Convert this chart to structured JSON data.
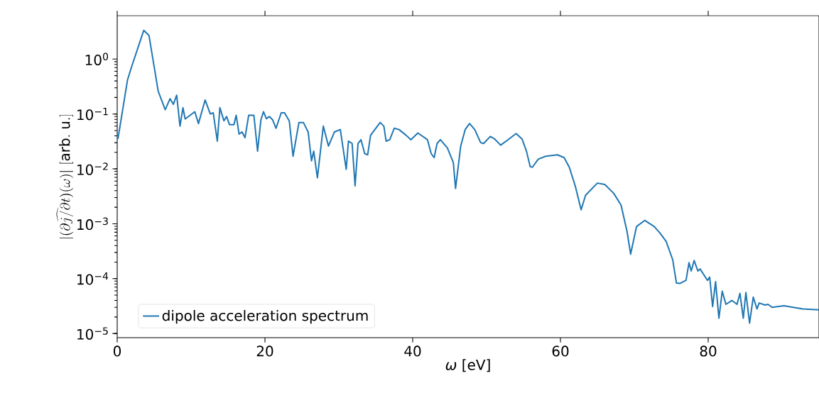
{
  "chart_data": {
    "type": "line",
    "xlabel": "*ω* [eV]",
    "ylabel": "|\\widehat{(\\partial j/\\partial t)}(\\omega)|\\ [\\mathrm{arb.\\ u.}]",
    "log": "y",
    "legend": "bottom left",
    "xlim": [
      0,
      95
    ],
    "ylim": [
      8.4e-06,
      6.2
    ],
    "xticks": [
      0,
      20,
      40,
      60,
      80
    ],
    "yticks": [
      {
        "value": 1e-05,
        "label": "10$^{−5}$"
      },
      {
        "value": 0.0001,
        "label": "10$^{−4}$"
      },
      {
        "value": 0.001,
        "label": "10$^{−3}$"
      },
      {
        "value": 0.01,
        "label": "10$^{−2}$"
      },
      {
        "value": 0.1,
        "label": "10$^{−1}$"
      },
      {
        "value": 1,
        "label": "10$^{0}$"
      }
    ],
    "series": [
      {
        "name": "dipole acceleration spectrum",
        "color": "#1f77b4",
        "x": [
          0.1,
          1.4,
          2.0,
          3.6,
          4.3,
          5.55,
          6.5,
          7.15,
          7.6,
          8.05,
          8.5,
          8.9,
          9.2,
          10.5,
          11.0,
          11.9,
          12.6,
          13.0,
          13.55,
          13.9,
          14.45,
          14.8,
          15.2,
          15.8,
          16.1,
          16.5,
          16.9,
          17.3,
          17.8,
          18.5,
          19.0,
          19.45,
          19.8,
          20.2,
          20.6,
          21.05,
          21.5,
          22.2,
          22.65,
          23.3,
          23.8,
          24.6,
          25.2,
          25.85,
          26.3,
          26.6,
          27.1,
          27.9,
          28.6,
          29.4,
          30.2,
          31.0,
          31.3,
          31.8,
          32.2,
          32.6,
          33.0,
          33.5,
          33.9,
          34.3,
          35.6,
          36.1,
          36.4,
          36.9,
          37.5,
          38.15,
          39.1,
          39.75,
          40.7,
          42.0,
          42.5,
          42.9,
          43.3,
          43.75,
          44.7,
          45.5,
          45.8,
          46.5,
          47.1,
          47.7,
          48.4,
          49.2,
          49.6,
          50.5,
          51.1,
          51.9,
          52.9,
          54.0,
          54.8,
          55.4,
          55.9,
          56.2,
          57.0,
          58.0,
          59.6,
          60.5,
          61.2,
          62.0,
          62.8,
          63.4,
          65.0,
          66.0,
          67.2,
          68.2,
          69.0,
          69.5,
          70.3,
          71.4,
          72.7,
          73.5,
          74.3,
          75.2,
          75.7,
          76.2,
          77.0,
          77.4,
          77.7,
          78.1,
          78.6,
          78.9,
          79.9,
          80.2,
          80.6,
          81.0,
          81.45,
          81.9,
          82.4,
          83.2,
          83.9,
          84.3,
          84.75,
          85.1,
          85.6,
          86.1,
          86.6,
          86.9,
          87.7,
          88.1,
          88.65,
          90.25,
          92.8,
          95.0
        ],
        "values": [
          0.035,
          0.42,
          0.76,
          3.35,
          2.7,
          0.26,
          0.12,
          0.19,
          0.15,
          0.22,
          0.06,
          0.13,
          0.081,
          0.11,
          0.067,
          0.18,
          0.1,
          0.105,
          0.032,
          0.13,
          0.075,
          0.09,
          0.064,
          0.064,
          0.095,
          0.043,
          0.047,
          0.037,
          0.095,
          0.095,
          0.021,
          0.078,
          0.11,
          0.082,
          0.09,
          0.078,
          0.055,
          0.105,
          0.105,
          0.074,
          0.017,
          0.07,
          0.07,
          0.047,
          0.014,
          0.021,
          0.0069,
          0.06,
          0.026,
          0.047,
          0.052,
          0.0098,
          0.032,
          0.029,
          0.0049,
          0.029,
          0.034,
          0.019,
          0.018,
          0.041,
          0.07,
          0.06,
          0.032,
          0.034,
          0.055,
          0.052,
          0.041,
          0.034,
          0.045,
          0.034,
          0.019,
          0.016,
          0.029,
          0.034,
          0.024,
          0.013,
          0.0044,
          0.026,
          0.052,
          0.067,
          0.052,
          0.03,
          0.029,
          0.039,
          0.035,
          0.027,
          0.034,
          0.044,
          0.035,
          0.021,
          0.011,
          0.0107,
          0.015,
          0.017,
          0.018,
          0.016,
          0.0107,
          0.0049,
          0.0018,
          0.0033,
          0.0055,
          0.0052,
          0.0036,
          0.0022,
          0.00074,
          0.00028,
          0.00089,
          0.00115,
          0.00089,
          0.00067,
          0.00048,
          0.00022,
          8.3e-05,
          8.2e-05,
          9.3e-05,
          0.000195,
          0.000138,
          0.000214,
          0.000138,
          0.00015,
          9.3e-05,
          0.000107,
          3.1e-05,
          8.8e-05,
          1.9e-05,
          5.9e-05,
          3.4e-05,
          4e-05,
          3.4e-05,
          5.4e-05,
          1.9e-05,
          5.6e-05,
          1.55e-05,
          4.6e-05,
          2.8e-05,
          3.6e-05,
          3.3e-05,
          3.4e-05,
          3e-05,
          3.2e-05,
          2.8e-05,
          2.7e-05
        ]
      }
    ]
  }
}
